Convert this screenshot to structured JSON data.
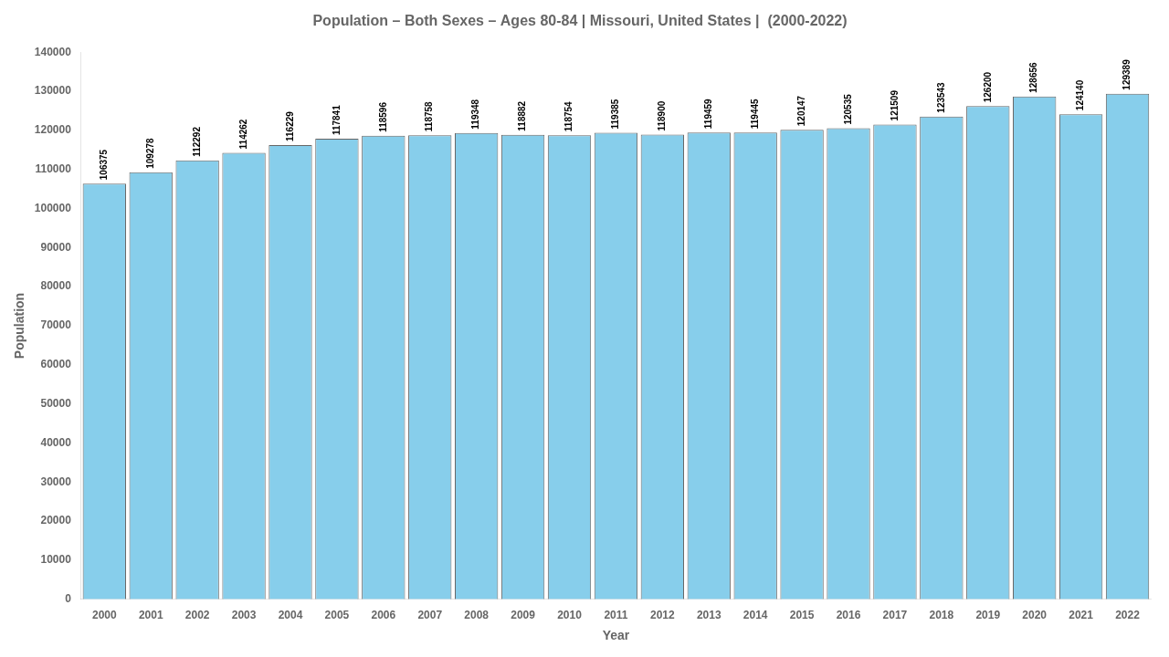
{
  "chart_data": {
    "type": "bar",
    "title": "Population – Both Sexes – Ages 80-84 | Missouri, United States |  (2000-2022)",
    "x_label": "Year",
    "y_label": "Population",
    "categories": [
      "2000",
      "2001",
      "2002",
      "2003",
      "2004",
      "2005",
      "2006",
      "2007",
      "2008",
      "2009",
      "2010",
      "2011",
      "2012",
      "2013",
      "2014",
      "2015",
      "2016",
      "2017",
      "2018",
      "2019",
      "2020",
      "2021",
      "2022"
    ],
    "values": [
      106375,
      109278,
      112292,
      114262,
      116229,
      117841,
      118596,
      118758,
      119348,
      118882,
      118754,
      119385,
      118900,
      119459,
      119445,
      120147,
      120535,
      121509,
      123543,
      126200,
      128656,
      124140,
      129389
    ],
    "color": "#87CEEB",
    "ylim": [
      0,
      140000
    ],
    "yticks": [
      0,
      10000,
      20000,
      30000,
      40000,
      50000,
      60000,
      70000,
      80000,
      90000,
      100000,
      110000,
      120000,
      130000,
      140000
    ],
    "grid": false,
    "data_labels": true
  }
}
